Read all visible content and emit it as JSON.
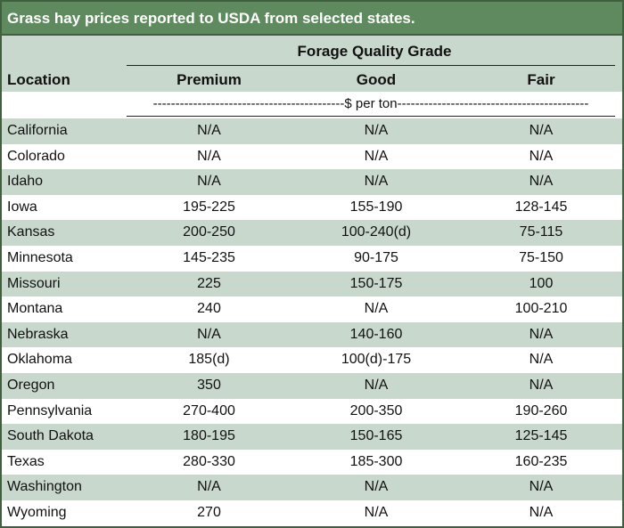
{
  "title": "Grass hay prices reported to USDA from selected states.",
  "header": {
    "group_label": "Forage Quality Grade",
    "location_label": "Location",
    "columns": [
      "Premium",
      "Good",
      "Fair"
    ]
  },
  "unit_row": "-------------------------------------------$ per ton-------------------------------------------",
  "rows": [
    {
      "location": "California",
      "premium": "N/A",
      "good": "N/A",
      "fair": "N/A"
    },
    {
      "location": "Colorado",
      "premium": "N/A",
      "good": "N/A",
      "fair": "N/A"
    },
    {
      "location": "Idaho",
      "premium": "N/A",
      "good": "N/A",
      "fair": "N/A"
    },
    {
      "location": "Iowa",
      "premium": "195-225",
      "good": "155-190",
      "fair": "128-145"
    },
    {
      "location": "Kansas",
      "premium": "200-250",
      "good": "100-240(d)",
      "fair": "75-115"
    },
    {
      "location": "Minnesota",
      "premium": "145-235",
      "good": "90-175",
      "fair": "75-150"
    },
    {
      "location": "Missouri",
      "premium": "225",
      "good": "150-175",
      "fair": "100"
    },
    {
      "location": "Montana",
      "premium": "240",
      "good": "N/A",
      "fair": "100-210"
    },
    {
      "location": "Nebraska",
      "premium": "N/A",
      "good": "140-160",
      "fair": "N/A"
    },
    {
      "location": "Oklahoma",
      "premium": "185(d)",
      "good": "100(d)-175",
      "fair": "N/A"
    },
    {
      "location": "Oregon",
      "premium": "350",
      "good": "N/A",
      "fair": "N/A"
    },
    {
      "location": "Pennsylvania",
      "premium": "270-400",
      "good": "200-350",
      "fair": "190-260"
    },
    {
      "location": "South Dakota",
      "premium": "180-195",
      "good": "150-165",
      "fair": "125-145"
    },
    {
      "location": "Texas",
      "premium": "280-330",
      "good": "185-300",
      "fair": "160-235"
    },
    {
      "location": "Washington",
      "premium": "N/A",
      "good": "N/A",
      "fair": "N/A"
    },
    {
      "location": "Wyoming",
      "premium": "270",
      "good": "N/A",
      "fair": "N/A"
    }
  ]
}
